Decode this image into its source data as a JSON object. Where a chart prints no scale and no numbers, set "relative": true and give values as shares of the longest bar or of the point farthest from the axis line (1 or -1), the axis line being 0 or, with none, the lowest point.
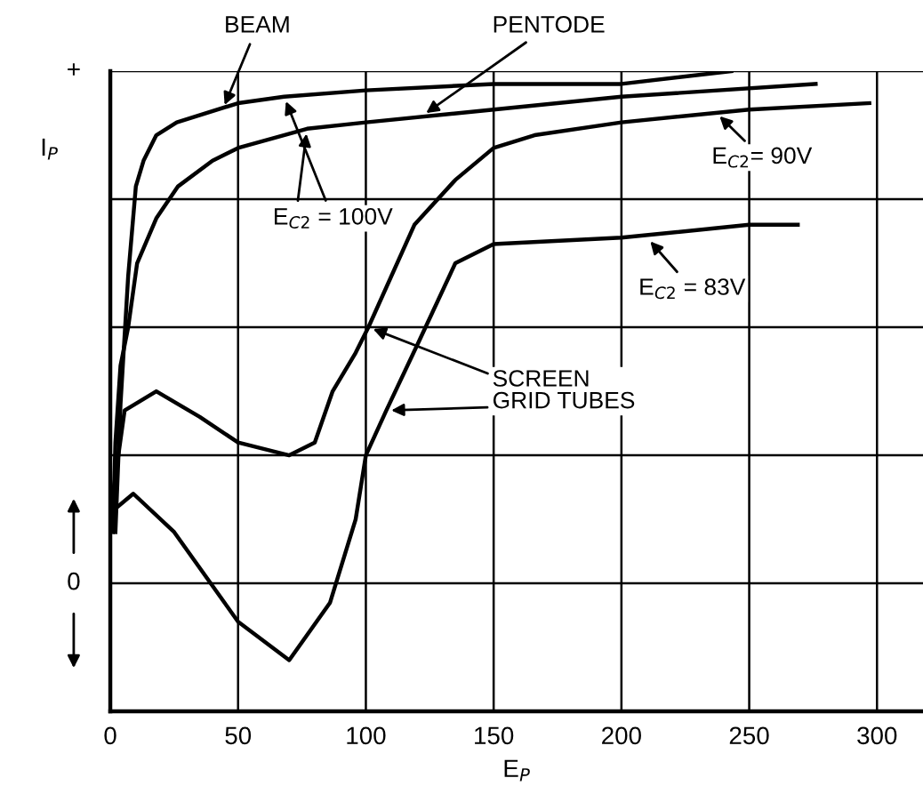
{
  "chart_data": {
    "type": "line",
    "relative": true,
    "xlabel": "E$_{P}$",
    "ylabel": "I$_{P}$",
    "xlim": [
      0,
      318
    ],
    "xticks": [
      0,
      50,
      100,
      150,
      200,
      250,
      300
    ],
    "grid": true,
    "legend": false,
    "marker": "none",
    "line_style": "solid",
    "series": [
      {
        "color": "#000000",
        "x": [
          2,
          4,
          7,
          10,
          13,
          18,
          26,
          50,
          68,
          100,
          150,
          200,
          243
        ],
        "values": [
          0.28,
          0.48,
          0.68,
          0.82,
          0.86,
          0.9,
          0.92,
          0.95,
          0.96,
          0.97,
          0.98,
          0.98,
          1.0
        ]
      },
      {
        "color": "#000000",
        "x": [
          1,
          2,
          4,
          7,
          10.5,
          18,
          26.5,
          40,
          50,
          77,
          100,
          150,
          200,
          276
        ],
        "values": [
          0.28,
          0.42,
          0.54,
          0.6,
          0.7,
          0.77,
          0.82,
          0.86,
          0.88,
          0.91,
          0.92,
          0.94,
          0.96,
          0.98
        ]
      },
      {
        "color": "#000000",
        "x": [
          0,
          5.6,
          18,
          35,
          50,
          70,
          80,
          87,
          96,
          101,
          119,
          135,
          150,
          166,
          200,
          250,
          297
        ],
        "values": [
          0.31,
          0.47,
          0.5,
          0.46,
          0.42,
          0.4,
          0.42,
          0.5,
          0.56,
          0.6,
          0.76,
          0.83,
          0.88,
          0.9,
          0.92,
          0.94,
          0.95
        ]
      },
      {
        "color": "#000000",
        "x": [
          0,
          9,
          25,
          50,
          70,
          86,
          96,
          100,
          108,
          121,
          135,
          150,
          200,
          250,
          269
        ],
        "values": [
          0.31,
          0.34,
          0.28,
          0.14,
          0.08,
          0.17,
          0.3,
          0.4,
          0.47,
          0.58,
          0.7,
          0.73,
          0.74,
          0.76,
          0.76
        ]
      }
    ],
    "annotations": [
      {
        "text": "BEAM",
        "x": 44,
        "y": 0.94
      },
      {
        "text": "PENTODE",
        "x": 122,
        "y": 0.93
      },
      {
        "text": "E$_{C2}$ = 100V",
        "x": 68,
        "y": 0.96
      },
      {
        "text": "E$_{C2}$= 90V",
        "x": 237,
        "y": 0.935
      },
      {
        "text": "E$_{C2}$ = 83V",
        "x": 210,
        "y": 0.74
      },
      "SCREEN\nGRID TUBES",
      "+",
      "0"
    ]
  }
}
